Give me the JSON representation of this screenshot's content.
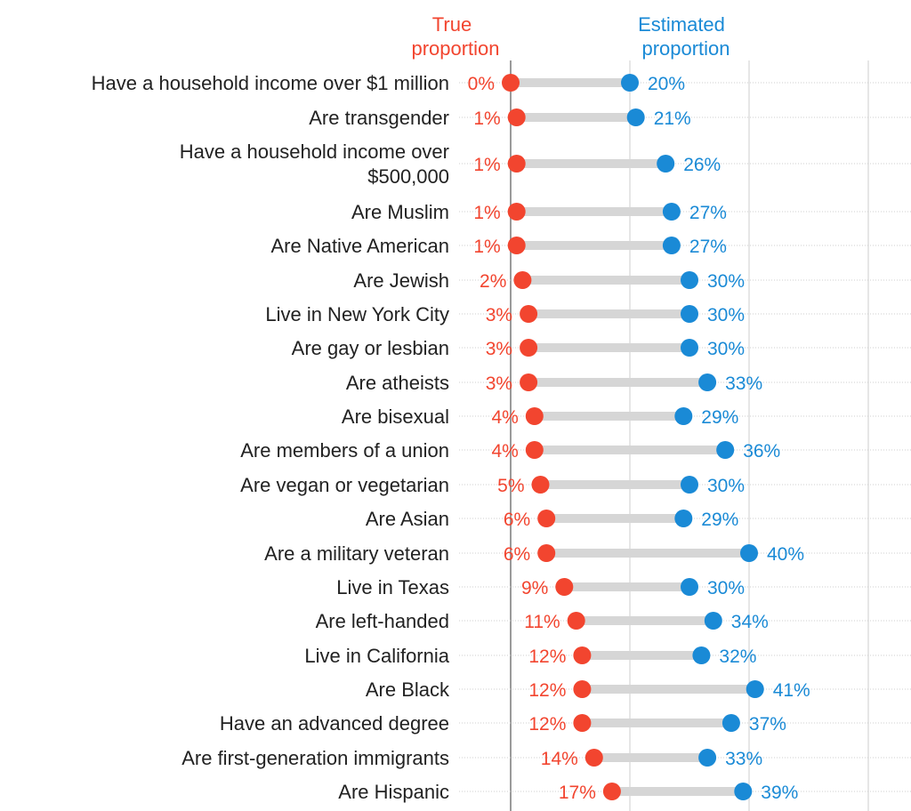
{
  "chart_data": {
    "type": "dumbbell",
    "legend": {
      "true_label_line1": "True",
      "true_label_line2": "proportion",
      "est_label_line1": "Estimated",
      "est_label_line2": "proportion"
    },
    "series": [
      {
        "name": "True proportion",
        "color": "#f2452f"
      },
      {
        "name": "Estimated proportion",
        "color": "#1a8ad6"
      }
    ],
    "xlim": [
      0,
      100
    ],
    "grid": true,
    "rows": [
      {
        "label": [
          "Have a household income over $1 million"
        ],
        "true_pct": 0,
        "est_pct": 20
      },
      {
        "label": [
          "Are transgender"
        ],
        "true_pct": 1,
        "est_pct": 21
      },
      {
        "label": [
          "Have a household income over",
          "$500,000"
        ],
        "true_pct": 1,
        "est_pct": 26
      },
      {
        "label": [
          "Are Muslim"
        ],
        "true_pct": 1,
        "est_pct": 27
      },
      {
        "label": [
          "Are Native American"
        ],
        "true_pct": 1,
        "est_pct": 27
      },
      {
        "label": [
          "Are Jewish"
        ],
        "true_pct": 2,
        "est_pct": 30
      },
      {
        "label": [
          "Live in New York City"
        ],
        "true_pct": 3,
        "est_pct": 30
      },
      {
        "label": [
          "Are gay or lesbian"
        ],
        "true_pct": 3,
        "est_pct": 30
      },
      {
        "label": [
          "Are atheists"
        ],
        "true_pct": 3,
        "est_pct": 33
      },
      {
        "label": [
          "Are bisexual"
        ],
        "true_pct": 4,
        "est_pct": 29
      },
      {
        "label": [
          "Are members of a union"
        ],
        "true_pct": 4,
        "est_pct": 36
      },
      {
        "label": [
          "Are vegan or vegetarian"
        ],
        "true_pct": 5,
        "est_pct": 30
      },
      {
        "label": [
          "Are Asian"
        ],
        "true_pct": 6,
        "est_pct": 29
      },
      {
        "label": [
          "Are a military veteran"
        ],
        "true_pct": 6,
        "est_pct": 40
      },
      {
        "label": [
          "Live in Texas"
        ],
        "true_pct": 9,
        "est_pct": 30
      },
      {
        "label": [
          "Are left-handed"
        ],
        "true_pct": 11,
        "est_pct": 34
      },
      {
        "label": [
          "Live in California"
        ],
        "true_pct": 12,
        "est_pct": 32
      },
      {
        "label": [
          "Are Black"
        ],
        "true_pct": 12,
        "est_pct": 41
      },
      {
        "label": [
          "Have an advanced degree"
        ],
        "true_pct": 12,
        "est_pct": 37
      },
      {
        "label": [
          "Are first-generation immigrants"
        ],
        "true_pct": 14,
        "est_pct": 33
      },
      {
        "label": [
          "Are Hispanic"
        ],
        "true_pct": 17,
        "est_pct": 39
      }
    ]
  }
}
